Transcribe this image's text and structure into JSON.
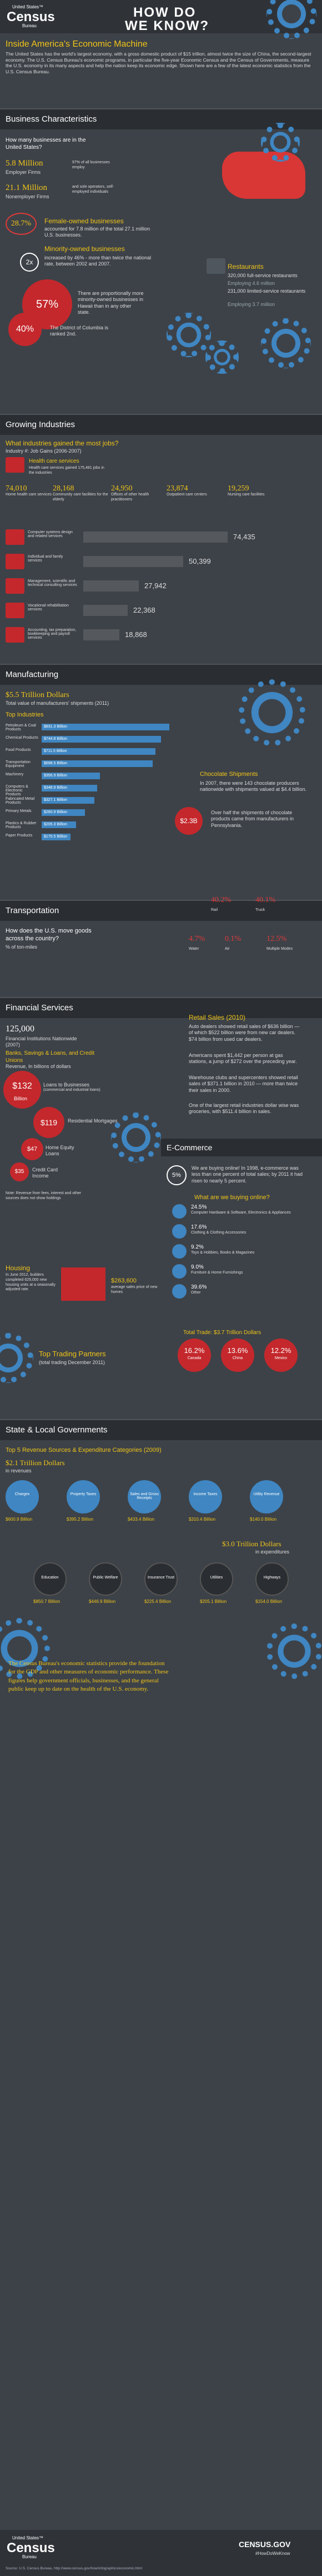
{
  "header": {
    "logo_small": "United States™",
    "logo_big": "Census",
    "logo_sub": "Bureau",
    "title_line1": "HOW DO",
    "title_line2": "WE KNOW?"
  },
  "intro": {
    "title": "Inside America's Economic Machine",
    "body": "The United States has the world's largest economy, with a gross domestic product of $15 trillion, almost twice the size of China, the second-largest economy. The U.S. Census Bureau's economic programs, in particular the five-year Economic Census and the Census of Governments, measure the U.S. economy in its many aspects and help the nation keep its economic edge. Shown here are a few of the latest economic statistics from the U.S. Census Bureau."
  },
  "business": {
    "heading": "Business Characteristics",
    "q": "How many businesses are in the United States?",
    "stat1": "5.8 Million",
    "stat1_sub": "Employer Firms",
    "stat1_note": "97% of all businesses employ",
    "stat2": "21.1 Million",
    "stat2_sub": "Nonemployer Firms",
    "stat2_note": "and sole operators, self-employed individuals",
    "female_pct": "28.7%",
    "female_title": "Female-owned businesses",
    "female_body": "accounted for 7.8 million of the total 27.1 million U.S. businesses.",
    "minority_title": "Minority-owned businesses",
    "minority_mult": "2x",
    "minority_body": "increased by 46% - more than twice the national rate, between 2002 and 2007.",
    "pct57": "57%",
    "pct57_body": "There are proportionally more minority-owned businesses in Hawaii than in any other state.",
    "pct40": "40%",
    "pct40_body": "The District of Columbia is ranked 2nd.",
    "rest_title": "Restaurants",
    "rest_line1": "320,000 full-service restaurants",
    "rest_line2": "Employing 4.6 million",
    "rest_line3": "231,000 limited-service restaurants",
    "rest_line4": "Employing 3.7 million"
  },
  "growing": {
    "heading": "Growing Industries",
    "q": "What industries gained the most jobs?",
    "q_sub": "Industry #: Job Gains (2006-2007)",
    "health_title": "Health care services",
    "health_body": "Health care services gained 175,481 jobs in the industries",
    "cols": [
      {
        "n": "74,010",
        "l": "Home health care services"
      },
      {
        "n": "28,168",
        "l": "Community care facilities for the elderly"
      },
      {
        "n": "24,950",
        "l": "Offices of other health practitioners"
      },
      {
        "n": "23,874",
        "l": "Outpatient care centers"
      },
      {
        "n": "19,259",
        "l": "Nursing care facilities"
      }
    ],
    "rows": [
      {
        "l": "Computer systems design and related services",
        "n": "74,435"
      },
      {
        "l": "Individual and family services",
        "n": "50,399"
      },
      {
        "l": "Management, scientific and technical consulting services",
        "n": "27,942"
      },
      {
        "l": "Vocational rehabilitation services",
        "n": "22,368"
      },
      {
        "l": "Accounting, tax preparation, bookkeeping and payroll services",
        "n": "18,868"
      }
    ]
  },
  "manufacturing": {
    "heading": "Manufacturing",
    "total": "$5.5 Trillion Dollars",
    "total_sub": "Total value of manufacturers' shipments (2011)",
    "top": "Top Industries",
    "bars": [
      {
        "l": "Petroleum & Coal Products",
        "v": "$831.3 Billion"
      },
      {
        "l": "Chemical Products",
        "v": "$744.8 Billion"
      },
      {
        "l": "Food Products",
        "v": "$711.5 Billion"
      },
      {
        "l": "Transportation Equipment",
        "v": "$698.5 Billion"
      },
      {
        "l": "Machinery",
        "v": "$356.9 Billion"
      },
      {
        "l": "Computers & Electronic Products",
        "v": "$348.9 Billion"
      },
      {
        "l": "Fabricated Metal Products",
        "v": "$327.1 Billion"
      },
      {
        "l": "Primary Metals",
        "v": "$260.9 Billion"
      },
      {
        "l": "Plastics & Rubber Products",
        "v": "$205.3 Billion"
      },
      {
        "l": "Paper Products",
        "v": "$170.5 Billion"
      }
    ],
    "choc_title": "Chocolate Shipments",
    "choc_body": "In 2007, there were 143 chocolate producers nationwide with shipments valued at $4.4 billion.",
    "choc_val": "$2.3B",
    "choc_body2": "Over half the shipments of chocolate products came from manufacturers in Pennsylvania."
  },
  "transport": {
    "heading": "Transportation",
    "q": "How does the U.S. move goods across the country?",
    "q_sub": "% of ton-miles",
    "modes": [
      {
        "v": "40.2%",
        "l": "Rail"
      },
      {
        "v": "40.1%",
        "l": "Truck"
      },
      {
        "v": "4.7%",
        "l": "Water"
      },
      {
        "v": "0.1%",
        "l": "Air"
      },
      {
        "v": "12.5%",
        "l": "Multiple Modes"
      }
    ]
  },
  "financial": {
    "heading": "Financial Services",
    "firms": "125,000",
    "firms_sub": "Financial Institutions Nationwide (2007)",
    "banks_title": "Banks, Savings & Loans, and Credit Unions",
    "banks_sub": "Revenue, In billions of dollars",
    "v132": "$132",
    "v132_unit": "Billion",
    "loans": "Loans to Businesses",
    "loans_sub": "(commercial and industrial loans)",
    "v119": "$119",
    "v119_l": "Residential Mortgages",
    "v47": "$47",
    "v47_l": "Home Equity Loans",
    "v35": "$35",
    "v35_l": "Credit Card Income",
    "note": "Note: Revenue from fees, interest and other sources does not show holdings"
  },
  "retail": {
    "title": "Retail Sales (2010)",
    "b1": "Auto dealers showed retail sales of $636 billion — of which $522 billion were from new car dealers. $74 billion from used car dealers.",
    "b2": "Americans spent $1,442 per person at gas stations, a jump of $272 over the preceding year.",
    "b3": "Warehouse clubs and supercenters showed retail sales of $371.1 billion in 2010 — more than twice their sales in 2000.",
    "b4": "One of the largest retail industries dollar wise was groceries, with $511.4 billion in sales."
  },
  "ecommerce": {
    "heading": "E-Commerce",
    "pct": "5%",
    "body": "We are buying online! In 1998, e-commerce was less than one percent of total sales; by 2011 it had risen to nearly 5 percent.",
    "q": "What are we buying online?",
    "items": [
      {
        "v": "24.5%",
        "l": "Computer Hardware & Software, Electronics & Appliances"
      },
      {
        "v": "17.6%",
        "l": "Clothing & Clothing Accessories"
      },
      {
        "v": "9.2%",
        "l": "Toys & Hobbies, Books & Magazines"
      },
      {
        "v": "9.0%",
        "l": "Furniture & Home Furnishings"
      },
      {
        "v": "39.6%",
        "l": "Other"
      }
    ]
  },
  "housing": {
    "title": "Housing",
    "body": "In June 2012, builders completed 629,000 new housing units at a seasonally adjusted rate.",
    "h1": "$263,600",
    "h1_l": "average sales price of new homes"
  },
  "trade": {
    "title": "Top Trading Partners",
    "sub": "(total trading December 2011)",
    "total": "Total Trade: $3.7 Trillion Dollars",
    "partners": [
      {
        "v": "16.2%",
        "l": "Canada"
      },
      {
        "v": "13.6%",
        "l": "China"
      },
      {
        "v": "12.2%",
        "l": "Mexico"
      }
    ]
  },
  "gov": {
    "heading": "State & Local Governments",
    "q": "Top 5 Revenue Sources & Expenditure Categories (2009)",
    "rev_total": "$2.1 Trillion Dollars",
    "rev_sub": "in revenues",
    "rev": [
      {
        "l": "Charges",
        "v": "$600.9 Billion"
      },
      {
        "l": "Property Taxes",
        "v": "$395.2 Billion"
      },
      {
        "l": "Sales and Gross Receipts",
        "v": "$433.4 Billion"
      },
      {
        "l": "Income Taxes",
        "v": "$310.4 Billion"
      },
      {
        "l": "Utility Revenue",
        "v": "$140.0 Billion"
      }
    ],
    "exp_total": "$3.0 Trillion Dollars",
    "exp_sub": "in expenditures",
    "exp": [
      {
        "l": "Education",
        "v": "$850.7 Billion"
      },
      {
        "l": "Public Welfare",
        "v": "$446.9 Billion"
      },
      {
        "l": "Insurance Trust",
        "v": "$225.4 Billion"
      },
      {
        "l": "Utilities",
        "v": "$205.1 Billion"
      },
      {
        "l": "Highways",
        "v": "$154.0 Billion"
      }
    ]
  },
  "closing": {
    "body": "The Census Bureau's economic statistics provide the foundation for the GDP and other measures of economic performance. These figures help government officials, businesses, and the general public keep up to date on the health of the U.S. economy."
  },
  "footer": {
    "logo_small": "United States™",
    "logo_big": "Census",
    "logo_sub": "Bureau",
    "url": "CENSUS.GOV",
    "tag": "#HowDoWeKnow",
    "source": "Source: U.S. Census Bureau, http://www.census.gov/how/infographics/economic.html"
  }
}
